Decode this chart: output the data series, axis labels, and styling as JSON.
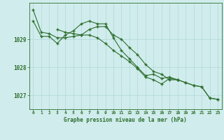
{
  "title": "Graphe pression niveau de la mer (hPa)",
  "bg_color": "#d0ecec",
  "grid_color": "#b0d8d8",
  "line_color": "#2d6e2d",
  "xlim": [
    -0.5,
    23.5
  ],
  "ylim": [
    1026.5,
    1030.3
  ],
  "yticks": [
    1027,
    1028,
    1029
  ],
  "xticks": [
    0,
    1,
    2,
    3,
    4,
    5,
    6,
    7,
    8,
    9,
    10,
    11,
    12,
    13,
    14,
    15,
    16,
    17,
    18,
    19,
    20,
    21,
    22,
    23
  ],
  "series": [
    {
      "x": [
        0,
        1,
        2,
        3,
        4,
        5,
        6,
        7,
        8,
        9,
        10,
        11,
        12,
        13,
        14,
        15,
        16,
        17,
        18,
        19,
        20,
        21,
        22,
        23
      ],
      "y": [
        1030.05,
        1029.25,
        1029.2,
        1029.05,
        1029.05,
        1029.1,
        1029.15,
        1029.35,
        1029.45,
        1029.45,
        1029.15,
        1029.0,
        1028.7,
        1028.45,
        1028.1,
        1027.85,
        1027.75,
        1027.55,
        1027.55,
        1027.45,
        1027.35,
        1027.3,
        1026.9,
        1026.85
      ]
    },
    {
      "x": [
        0,
        1,
        2,
        3,
        4,
        5,
        6,
        7,
        8,
        9,
        10,
        11,
        12,
        13,
        14,
        15,
        16,
        17,
        18
      ],
      "y": [
        1029.65,
        1029.1,
        1029.1,
        1028.85,
        1029.15,
        1029.3,
        1029.55,
        1029.65,
        1029.55,
        1029.55,
        1029.05,
        1028.6,
        1028.3,
        1028.0,
        1027.7,
        1027.75,
        1027.6,
        1027.65,
        1027.55
      ]
    },
    {
      "x": [
        3,
        4,
        5,
        6,
        7,
        8,
        9,
        10,
        11,
        12,
        13,
        14,
        15,
        16,
        17,
        18,
        19,
        20,
        21,
        22,
        23
      ],
      "y": [
        1029.35,
        1029.25,
        1029.2,
        1029.15,
        1029.15,
        1029.05,
        1028.85,
        1028.6,
        1028.4,
        1028.2,
        1027.95,
        1027.65,
        1027.55,
        1027.4,
        1027.6,
        1027.55,
        1027.45,
        1027.35,
        1027.3,
        1026.9,
        1026.85
      ]
    }
  ]
}
